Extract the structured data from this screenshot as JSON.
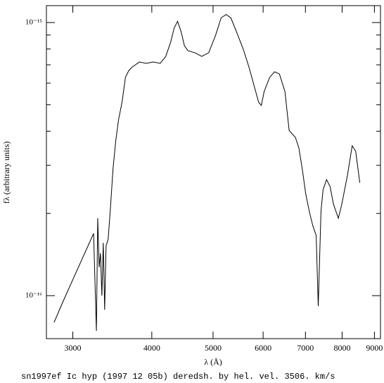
{
  "chart_data": {
    "type": "line",
    "caption": "sn1997ef Ic hyp (1997 12 05b) deredsh. by hel. vel.  3506. km/s",
    "xlabel": "λ (Å)",
    "ylabel": "fλ (arbitrary units)",
    "xlog": true,
    "ylog": true,
    "xlim": [
      2725,
      9200
    ],
    "ylim": [
      6.96e-17,
      1.153e-15
    ],
    "xticks": [
      3000,
      4000,
      5000,
      6000,
      7000,
      8000,
      9000
    ],
    "yticks": [
      {
        "value": 1e-16,
        "label": "10⁻¹⁶"
      },
      {
        "value": 1e-15,
        "label": "10⁻¹⁵"
      }
    ],
    "yminorticks": [
      2e-16,
      3e-16,
      4e-16,
      5e-16,
      6e-16,
      7e-16,
      8e-16,
      9e-16
    ],
    "series": [
      {
        "color": "#000000",
        "x": [
          2802,
          2896,
          3008,
          3124,
          3236,
          3252,
          3269,
          3285,
          3302,
          3318,
          3335,
          3352,
          3369,
          3386,
          3412,
          3438,
          3473,
          3508,
          3544,
          3589,
          3634,
          3680,
          3728,
          3823,
          3920,
          4021,
          4125,
          4209,
          4284,
          4339,
          4394,
          4450,
          4505,
          4562,
          4679,
          4798,
          4921,
          5047,
          5149,
          5242,
          5335,
          5444,
          5582,
          5697,
          5799,
          5902,
          5961,
          6022,
          6145,
          6255,
          6367,
          6496,
          6596,
          6663,
          6747,
          6833,
          6919,
          7007,
          7097,
          7187,
          7279,
          7334,
          7408,
          7464,
          7559,
          7656,
          7753,
          7891,
          7990,
          8153,
          8299,
          8405,
          8533
        ],
        "values": [
          7.98e-17,
          9.54e-17,
          1.16e-16,
          1.41e-16,
          1.69e-16,
          1.13e-16,
          7.43e-17,
          1.92e-16,
          1.27e-16,
          1.43e-16,
          1e-16,
          1.56e-16,
          8.88e-17,
          1.52e-16,
          1.61e-16,
          2.04e-16,
          2.91e-16,
          3.69e-16,
          4.41e-16,
          5.11e-16,
          6.3e-16,
          6.68e-16,
          6.88e-16,
          7.17e-16,
          7.09e-16,
          7.17e-16,
          7.09e-16,
          7.52e-16,
          8.47e-16,
          9.54e-16,
          1.01e-15,
          9.26e-16,
          8.22e-16,
          7.89e-16,
          7.75e-16,
          7.52e-16,
          7.75e-16,
          8.99e-16,
          1.04e-15,
          1.07e-15,
          1.04e-15,
          9.26e-16,
          7.98e-16,
          6.88e-16,
          5.93e-16,
          5.11e-16,
          4.97e-16,
          5.59e-16,
          6.3e-16,
          6.6e-16,
          6.48e-16,
          5.59e-16,
          4.03e-16,
          3.92e-16,
          3.8e-16,
          3.48e-16,
          2.91e-16,
          2.36e-16,
          2.04e-16,
          1.81e-16,
          1.66e-16,
          9.15e-17,
          2.04e-16,
          2.44e-16,
          2.66e-16,
          2.51e-16,
          2.16e-16,
          1.92e-16,
          2.16e-16,
          2.74e-16,
          3.54e-16,
          3.38e-16,
          2.59e-16
        ]
      }
    ]
  }
}
